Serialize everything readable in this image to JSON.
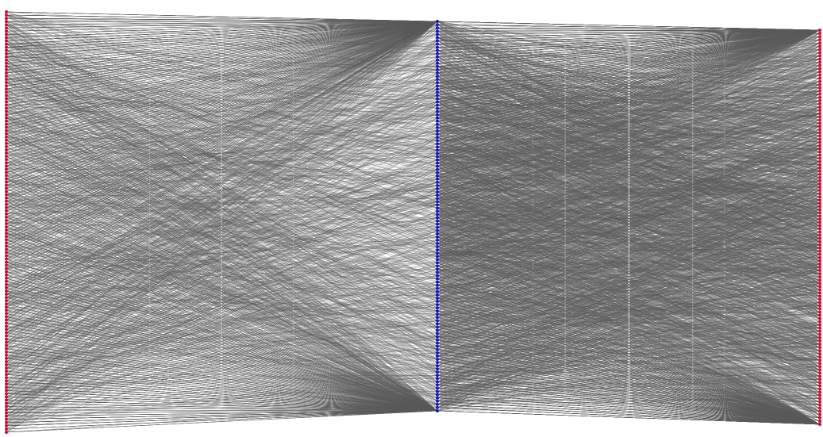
{
  "diagram": {
    "type": "layered-network",
    "edge_color": "#5a5a5a",
    "layers": [
      {
        "color": "#c8102e"
      },
      {
        "color": "#1a1aa8"
      },
      {
        "color": "#c8102e"
      }
    ]
  }
}
